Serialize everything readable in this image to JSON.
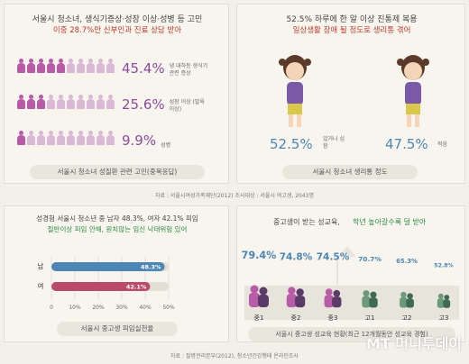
{
  "panel_tl": {
    "title": "서울시 청소녀, 생식기증상·성장 이상·성병 등 고민",
    "subtitle": "이중 28.7%만 신부인과 진료 상담 받아",
    "rows": [
      {
        "pct": "45.4%",
        "label": "냉 대하등 생식기 관련 증상",
        "value": 45.4
      },
      {
        "pct": "25.6%",
        "label": "성장 이상 (발육 이상)",
        "value": 25.6
      },
      {
        "pct": "9.9%",
        "label": "성병",
        "value": 9.9
      }
    ],
    "footer": "서울시 청소녀 성질환 관련 고민(중복응답)"
  },
  "panel_tr": {
    "title": "52.5% 하루에 한 알 이상 진통제 복용",
    "subtitle": "일상생활 장애 될 정도로 생리통 겪어",
    "left_pct": "52.5%",
    "left_label": "있거나 심함",
    "right_pct": "47.5%",
    "right_label": "적음",
    "footer": "서울시 청소녀 생리통 정도"
  },
  "source_top": "자료 : 서울시여성가족재단(2012)   조사대상 : 서울시 여고생, 2043명",
  "panel_bl": {
    "title": "성경험 서울시 청소년 중 남자 48.3%, 여자 42.1% 피임",
    "subtitle": "절반이상 피임 안해, 원치않는 임신 낙태위험 있어",
    "footer": "서울시 중고생 피임실천율"
  },
  "panel_br": {
    "title_a": "중고생이 받는 성교육,",
    "title_b": "학년 높아갈수록 덜 받아",
    "footer": "서울시 중고생 성교육 현황(최근 12개월동안 성교육 경험)"
  },
  "source_bottom": "자료 : 질병관리본부(2012), 청소년건강행태 온라인조사",
  "watermark": "MT 머니투데이",
  "colors": {
    "purple": "#b85ca8",
    "blue": "#4d86b4",
    "green": "#6a9a7a"
  },
  "chart_data": [
    {
      "type": "bar",
      "orientation": "horizontal",
      "categories": [
        "남",
        "여"
      ],
      "values": [
        48.3,
        42.1
      ],
      "value_labels": [
        "48.3%",
        "42.1%"
      ],
      "xticks": [
        "0",
        "10%",
        "20%",
        "30%",
        "40%",
        "50%"
      ],
      "xlim": [
        0,
        50
      ],
      "bar_colors": [
        "#4d86b4",
        "#b94a6a"
      ]
    },
    {
      "type": "bar",
      "categories": [
        "중1",
        "중2",
        "중3",
        "고1",
        "고2",
        "고3"
      ],
      "values": [
        79.4,
        74.8,
        74.5,
        70.7,
        65.3,
        52.8
      ],
      "value_labels": [
        "79.4%",
        "74.8%",
        "74.5%",
        "70.7%",
        "65.3%",
        "52.8%"
      ]
    }
  ]
}
